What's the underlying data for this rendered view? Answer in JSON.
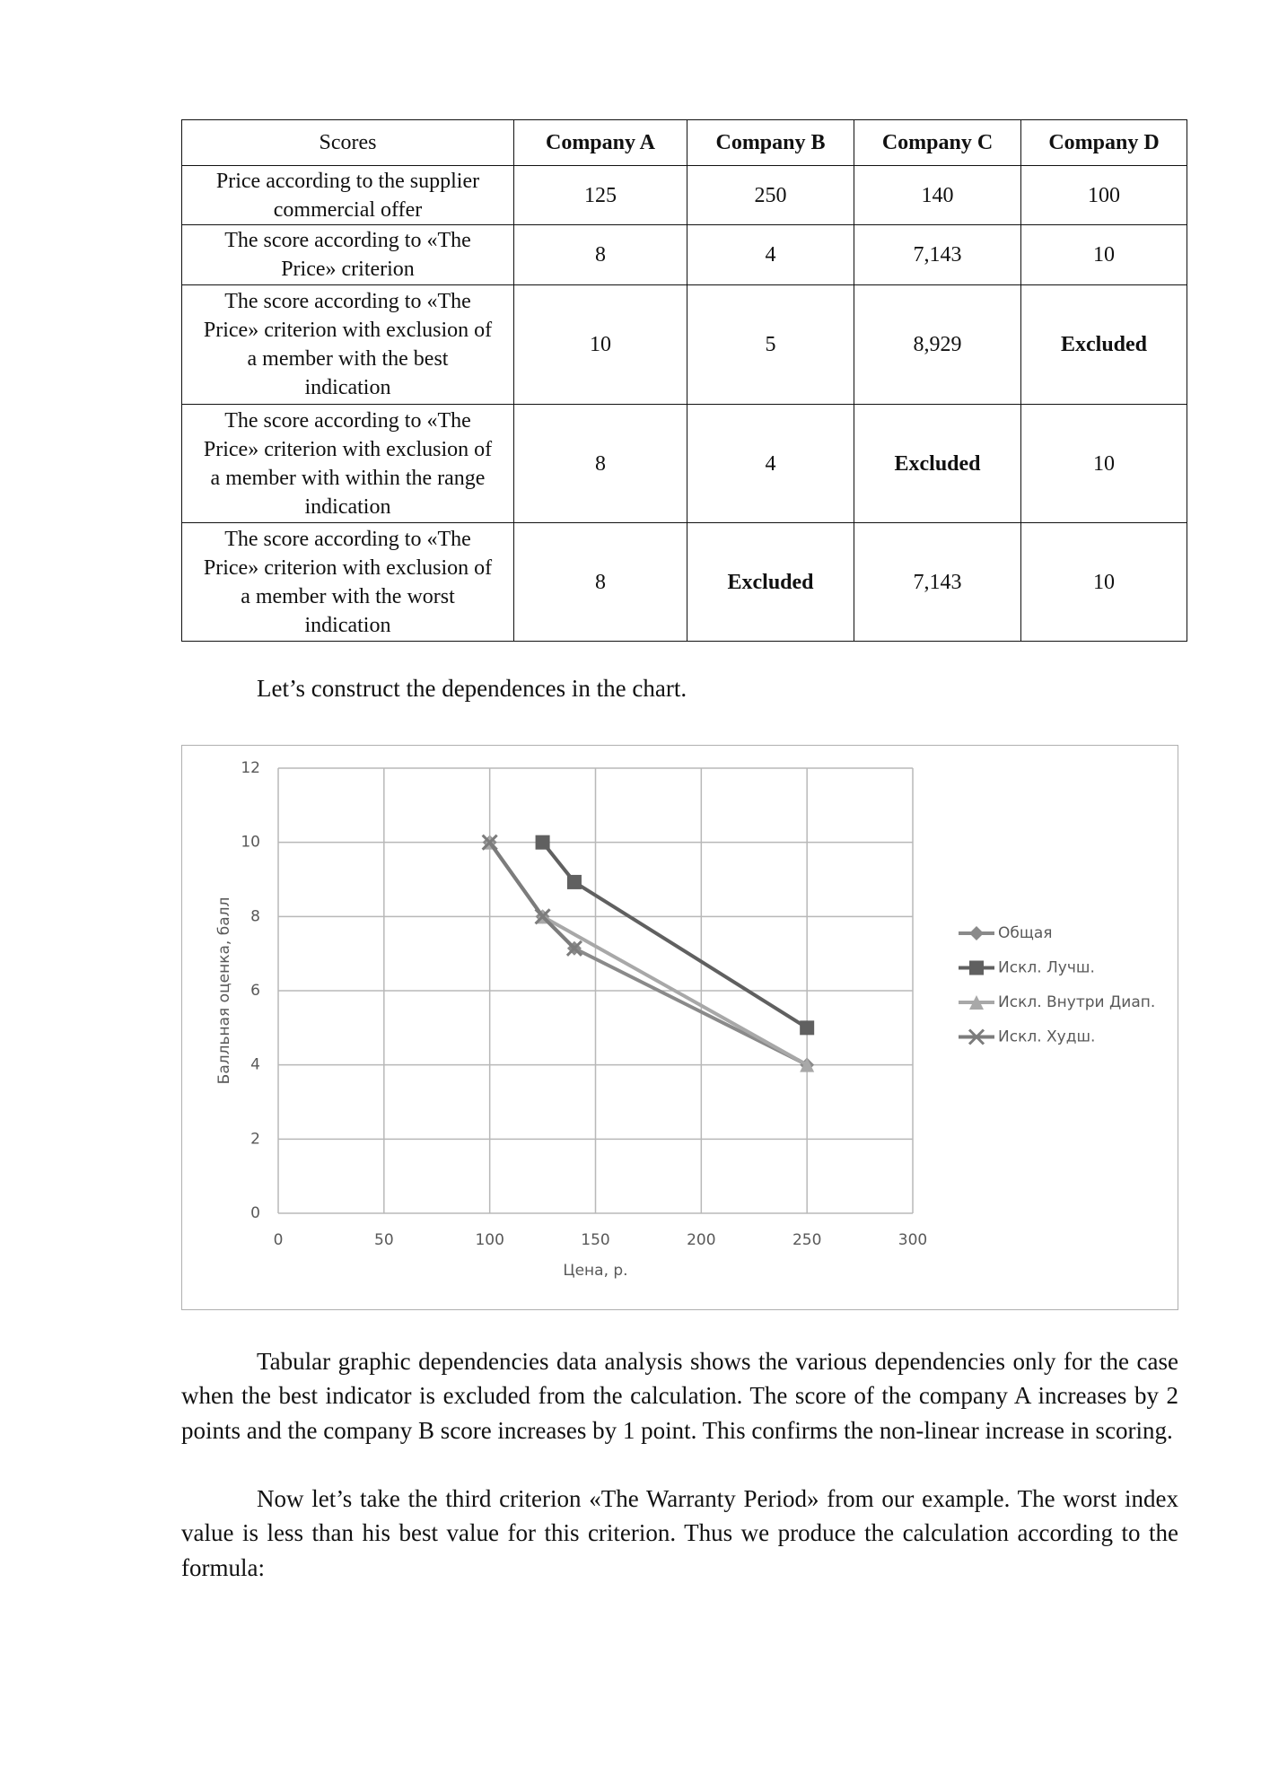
{
  "table": {
    "header": [
      "Scores",
      "Company A",
      "Company B",
      "Company C",
      "Company D"
    ],
    "rows": [
      [
        "Price according to the supplier commercial offer",
        "125",
        "250",
        "140",
        "100"
      ],
      [
        "The score according to «The Price» criterion",
        "8",
        "4",
        "7,143",
        "10"
      ],
      [
        "The score according to «The Price» criterion with exclusion of a member with the best indication",
        "10",
        "5",
        "8,929",
        "Excluded"
      ],
      [
        "The score according to «The Price» criterion with exclusion of a member with within the range indication",
        "8",
        "4",
        "Excluded",
        "10"
      ],
      [
        "The score according to «The Price» criterion with exclusion of a member with the worst indication",
        "8",
        "Excluded",
        "7,143",
        "10"
      ]
    ]
  },
  "intro": "Let’s construct the dependences in the chart.",
  "chart_data": {
    "type": "line",
    "xlabel": "Цена, р.",
    "ylabel": "Балльная оценка, балл",
    "xlim": [
      0,
      300
    ],
    "xticks": [
      0,
      50,
      100,
      150,
      200,
      250,
      300
    ],
    "ylim": [
      0,
      12
    ],
    "yticks": [
      0,
      2,
      4,
      6,
      8,
      10,
      12
    ],
    "grid": true,
    "legend": "right",
    "series": [
      {
        "name": "Общая",
        "color": "#8a8a8a",
        "marker": "diamond",
        "x": [
          100,
          125,
          140,
          250
        ],
        "values": [
          10,
          8,
          7.143,
          4
        ]
      },
      {
        "name": "Искл. Лучш.",
        "color": "#606060",
        "marker": "square",
        "x": [
          125,
          140,
          250
        ],
        "values": [
          10,
          8.929,
          5
        ]
      },
      {
        "name": "Искл. Внутри Диап.",
        "color": "#a8a8a8",
        "marker": "triangle",
        "x": [
          100,
          125,
          250
        ],
        "values": [
          10,
          8,
          4
        ]
      },
      {
        "name": "Искл. Худш.",
        "color": "#7c7c7c",
        "marker": "x",
        "x": [
          100,
          125,
          140
        ],
        "values": [
          10,
          8,
          7.143
        ]
      }
    ]
  },
  "paragraphs": [
    "Tabular graphic dependencies data analysis shows the various dependencies only for the case when the best indicator is excluded from the calculation. The score of the company A increases by 2 points and the company B score increases by 1 point. This confirms the non-linear increase in scoring.",
    "Now let’s take the third criterion «The Warranty Period» from our example. The worst index value is less than his best value for this criterion. Thus we produce the calculation according to the formula:"
  ]
}
